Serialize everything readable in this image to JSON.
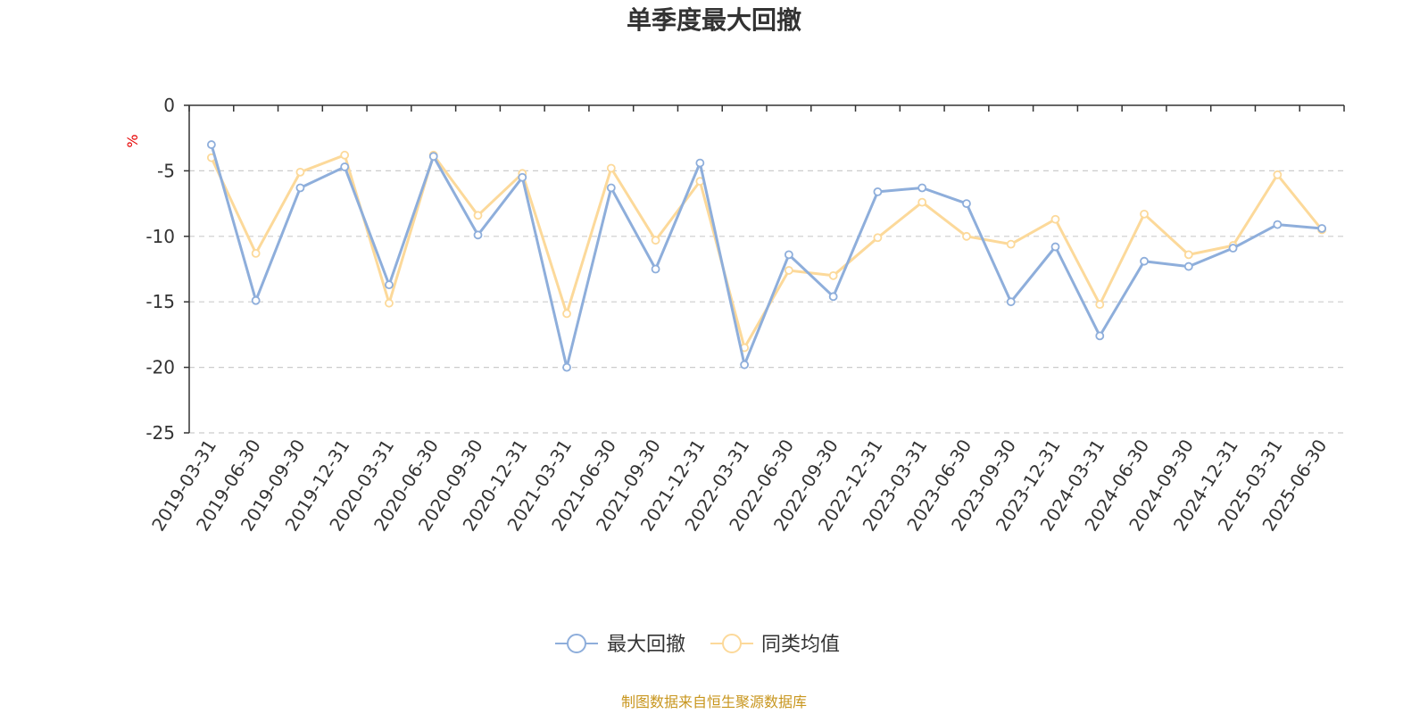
{
  "chart_data": {
    "type": "line",
    "title": "单季度最大回撤",
    "ylabel": "%",
    "xlabel": "",
    "ylim": [
      -25,
      0
    ],
    "yticks": [
      0,
      -5,
      -10,
      -15,
      -20,
      -25
    ],
    "grid": true,
    "legend_position": "bottom-center",
    "categories": [
      "2019-03-31",
      "2019-06-30",
      "2019-09-30",
      "2019-12-31",
      "2020-03-31",
      "2020-06-30",
      "2020-09-30",
      "2020-12-31",
      "2021-03-31",
      "2021-06-30",
      "2021-09-30",
      "2021-12-31",
      "2022-03-31",
      "2022-06-30",
      "2022-09-30",
      "2022-12-31",
      "2023-03-31",
      "2023-06-30",
      "2023-09-30",
      "2023-12-31",
      "2024-03-31",
      "2024-06-30",
      "2024-09-30",
      "2024-12-31",
      "2025-03-31",
      "2025-06-30"
    ],
    "series": [
      {
        "name": "最大回撤",
        "color": "#8eaedb",
        "values": [
          -3.0,
          -14.9,
          -6.3,
          -4.7,
          -13.7,
          -3.9,
          -9.9,
          -5.5,
          -20.0,
          -6.3,
          -12.5,
          -4.4,
          -19.8,
          -11.4,
          -14.6,
          -6.6,
          -6.3,
          -7.5,
          -15.0,
          -10.8,
          -17.6,
          -11.9,
          -12.3,
          -10.9,
          -9.1,
          -9.4
        ]
      },
      {
        "name": "同类均值",
        "color": "#fcd99a",
        "values": [
          -4.0,
          -11.3,
          -5.1,
          -3.8,
          -15.1,
          -3.8,
          -8.4,
          -5.2,
          -15.9,
          -4.8,
          -10.3,
          -5.8,
          -18.5,
          -12.6,
          -13.0,
          -10.1,
          -7.4,
          -10.0,
          -10.6,
          -8.7,
          -15.2,
          -8.3,
          -11.4,
          -10.7,
          -5.3,
          -9.5
        ]
      }
    ]
  },
  "source": "制图数据来自恒生聚源数据库",
  "colors": {
    "axis": "#333333",
    "grid": "#cccccc",
    "unit": "#e60000",
    "source": "#c8961e"
  }
}
